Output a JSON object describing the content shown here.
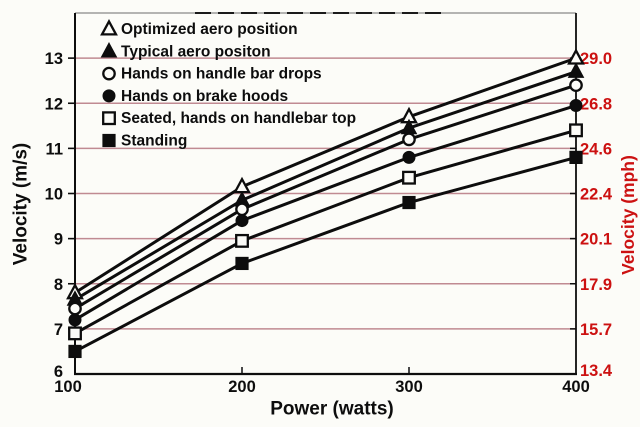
{
  "chart_data": {
    "type": "line",
    "xlabel": "Power (watts)",
    "ylabel_left": "Velocity (m/s)",
    "ylabel_right": "Velocity (mph)",
    "x": [
      100,
      200,
      300,
      400
    ],
    "xlim": [
      100,
      400
    ],
    "ylim_ms": [
      6,
      14
    ],
    "grid": "horizontal",
    "legend_position": "upper-left-inside",
    "x_ticks": [
      {
        "value": 100,
        "label": "100"
      },
      {
        "value": 200,
        "label": "200"
      },
      {
        "value": 300,
        "label": "300"
      },
      {
        "value": 400,
        "label": "400"
      }
    ],
    "y_ticks_left": [
      {
        "value": 13,
        "label": "13"
      },
      {
        "value": 12,
        "label": "12"
      },
      {
        "value": 11,
        "label": "11"
      },
      {
        "value": 10,
        "label": "10"
      },
      {
        "value": 9,
        "label": "9"
      },
      {
        "value": 8,
        "label": "8"
      },
      {
        "value": 7,
        "label": "7"
      },
      {
        "value": 6,
        "label": "6"
      }
    ],
    "y_ticks_right": [
      {
        "value": 13,
        "label": "29.0"
      },
      {
        "value": 12,
        "label": "26.8"
      },
      {
        "value": 11,
        "label": "24.6"
      },
      {
        "value": 10,
        "label": "22.4"
      },
      {
        "value": 9,
        "label": "20.1"
      },
      {
        "value": 8,
        "label": "17.9"
      },
      {
        "value": 7,
        "label": "15.7"
      },
      {
        "value": 6,
        "label": "13.4"
      }
    ],
    "series": [
      {
        "name": "Optimized aero position",
        "marker": "triangle-open",
        "values_ms": [
          7.8,
          10.15,
          11.7,
          13.0
        ]
      },
      {
        "name": "Typical aero positon",
        "marker": "triangle-filled",
        "values_ms": [
          7.65,
          9.85,
          11.45,
          12.7
        ]
      },
      {
        "name": "Hands on handle bar drops",
        "marker": "circle-open",
        "values_ms": [
          7.45,
          9.65,
          11.2,
          12.4
        ]
      },
      {
        "name": "Hands on brake hoods",
        "marker": "circle-filled",
        "values_ms": [
          7.2,
          9.4,
          10.8,
          11.95
        ]
      },
      {
        "name": "Seated, hands on handlebar top",
        "marker": "square-open",
        "values_ms": [
          6.9,
          8.95,
          10.35,
          11.4
        ]
      },
      {
        "name": "Standing",
        "marker": "square-filled",
        "values_ms": [
          6.5,
          8.45,
          9.8,
          10.8
        ]
      }
    ],
    "colors": {
      "line": "#0d0d0d",
      "axis": "#0d0d0d",
      "grid": "#c08a92",
      "accent_red": "#cc1111",
      "background": "#fcfcf8"
    }
  }
}
